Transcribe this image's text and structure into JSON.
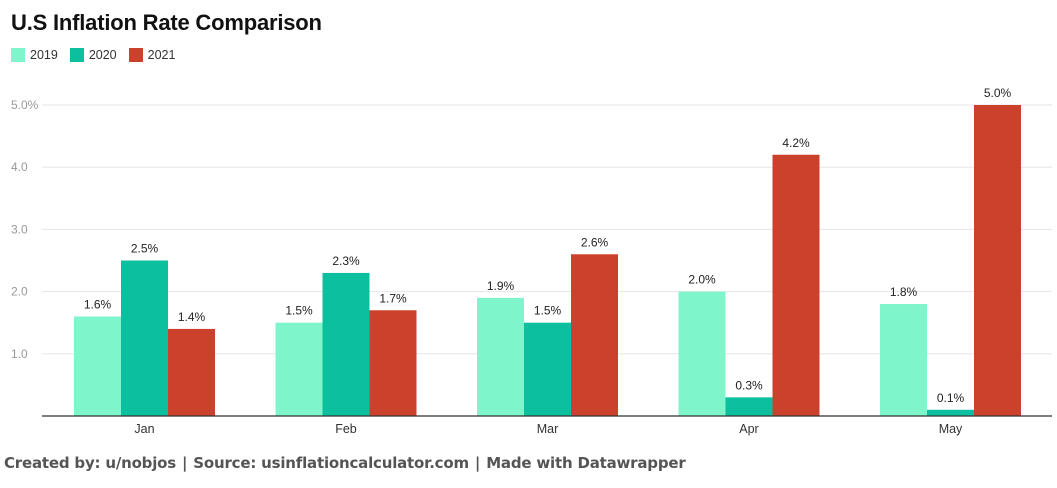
{
  "title": "U.S Inflation Rate Comparison",
  "colors": {
    "2019": "#7ff5cc",
    "2020": "#0bbf9f",
    "2021": "#cc412b",
    "grid": "#e6e6e6",
    "axis": "#333333",
    "tick": "#999999"
  },
  "legend": [
    {
      "label": "2019",
      "color": "#7ff5cc"
    },
    {
      "label": "2020",
      "color": "#0bbf9f"
    },
    {
      "label": "2021",
      "color": "#cc412b"
    }
  ],
  "chart_data": {
    "type": "bar",
    "title": "U.S Inflation Rate Comparison",
    "categories": [
      "Jan",
      "Feb",
      "Mar",
      "Apr",
      "May"
    ],
    "series": [
      {
        "name": "2019",
        "values": [
          1.6,
          1.5,
          1.9,
          2.0,
          1.8
        ],
        "labels": [
          "1.6%",
          "1.5%",
          "1.9%",
          "2.0%",
          "1.8%"
        ]
      },
      {
        "name": "2020",
        "values": [
          2.5,
          2.3,
          1.5,
          0.3,
          0.1
        ],
        "labels": [
          "2.5%",
          "2.3%",
          "1.5%",
          "0.3%",
          "0.1%"
        ]
      },
      {
        "name": "2021",
        "values": [
          1.4,
          1.7,
          2.6,
          4.2,
          5.0
        ],
        "labels": [
          "1.4%",
          "1.7%",
          "2.6%",
          "4.2%",
          "5.0%"
        ]
      }
    ],
    "yticks": [
      {
        "value": 1,
        "label": "1.0"
      },
      {
        "value": 2,
        "label": "2.0"
      },
      {
        "value": 3,
        "label": "3.0"
      },
      {
        "value": 4,
        "label": "4.0"
      },
      {
        "value": 5,
        "label": "5.0%"
      }
    ],
    "ylim": [
      0,
      5
    ],
    "grid": true,
    "legend_position": "top-left",
    "xlabel": "",
    "ylabel": ""
  },
  "footer": {
    "credit": "Created by: u/nobjos",
    "source": "Source: usinflationcalculator.com",
    "made_with": "Made with Datawrapper",
    "separator": "|"
  }
}
